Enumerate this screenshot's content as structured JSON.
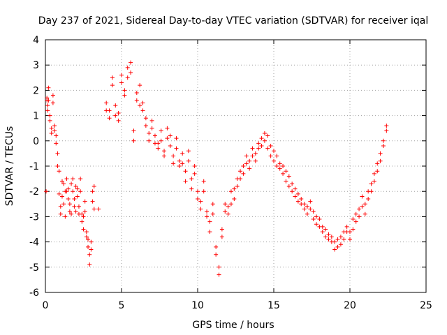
{
  "chart_data": {
    "type": "scatter",
    "title": "Day 237 of 2021, Sidereal Day-to-day VTEC variation (SDTVAR) for receiver iqal",
    "xlabel": "GPS time / hours",
    "ylabel": "SDTVAR / TECUs",
    "xlim": [
      0,
      25
    ],
    "ylim": [
      -6,
      4
    ],
    "xticks": [
      0,
      5,
      10,
      15,
      20,
      25
    ],
    "yticks": [
      -6,
      -5,
      -4,
      -3,
      -2,
      -1,
      0,
      1,
      2,
      3,
      4
    ],
    "grid": true,
    "marker": "+",
    "color": "#ff0000",
    "series": [
      {
        "name": "SDTVAR",
        "x": [
          0.05,
          0.1,
          0.15,
          0.2,
          0.3,
          0.4,
          0.5,
          0.6,
          0.7,
          0.8,
          0.9,
          1.0,
          1.1,
          1.2,
          1.3,
          1.4,
          1.5,
          1.6,
          1.7,
          1.8,
          1.9,
          2.0,
          2.1,
          2.2,
          2.3,
          2.4,
          2.5,
          2.6,
          2.7,
          2.8,
          2.9,
          3.0,
          3.1,
          3.2,
          3.5,
          4.0,
          4.2,
          4.4,
          4.6,
          4.8,
          5.0,
          5.2,
          5.4,
          5.6,
          5.8,
          6.0,
          6.2,
          6.4,
          6.6,
          6.8,
          7.0,
          7.2,
          7.4,
          7.6,
          7.8,
          8.0,
          8.2,
          8.4,
          8.6,
          8.8,
          9.0,
          9.2,
          9.4,
          9.6,
          9.8,
          10.0,
          10.2,
          10.4,
          10.6,
          10.8,
          11.0,
          11.2,
          11.4,
          11.6,
          11.8,
          12.0,
          12.2,
          12.4,
          12.6,
          12.8,
          13.0,
          13.2,
          13.4,
          13.6,
          13.8,
          14.0,
          14.2,
          14.4,
          14.6,
          14.8,
          15.0,
          15.2,
          15.4,
          15.6,
          15.8,
          16.0,
          16.2,
          16.4,
          16.6,
          16.8,
          17.0,
          17.2,
          17.4,
          17.6,
          17.8,
          18.0,
          18.2,
          18.4,
          18.6,
          18.8,
          19.0,
          19.2,
          19.4,
          19.6,
          19.8,
          20.0,
          20.2,
          20.4,
          20.6,
          20.8,
          21.0,
          21.2,
          21.4,
          21.6,
          21.8,
          22.0,
          22.2,
          22.4
        ],
        "y": [
          -2.0,
          1.6,
          1.2,
          2.1,
          1.0,
          0.5,
          1.8,
          0.6,
          0.2,
          -0.5,
          -1.2,
          -2.9,
          -1.6,
          -2.5,
          -2.0,
          -1.5,
          -2.3,
          -2.8,
          -1.7,
          -2.0,
          -2.6,
          -1.8,
          -2.2,
          -2.9,
          -1.5,
          -3.2,
          -3.5,
          -2.4,
          -3.8,
          -4.2,
          -4.9,
          -4.0,
          -2.0,
          -1.8,
          -2.7,
          1.5,
          1.2,
          2.5,
          1.0,
          0.8,
          2.6,
          1.8,
          2.9,
          3.1,
          0.4,
          1.9,
          2.2,
          1.5,
          0.9,
          0.3,
          0.8,
          0.2,
          -0.1,
          0.4,
          -0.4,
          0.5,
          0.2,
          -0.6,
          0.1,
          -0.8,
          -0.5,
          -1.2,
          -0.4,
          -1.5,
          -1.0,
          -2.0,
          -2.4,
          -1.6,
          -2.8,
          -3.2,
          -2.5,
          -4.5,
          -5.3,
          -3.5,
          -2.5,
          -2.9,
          -2.0,
          -2.3,
          -1.5,
          -1.2,
          -1.0,
          -0.6,
          -0.8,
          -0.3,
          -0.5,
          -0.1,
          0.1,
          0.3,
          0.2,
          -0.2,
          -0.4,
          -0.6,
          -0.9,
          -1.0,
          -1.2,
          -1.4,
          -1.7,
          -1.9,
          -2.1,
          -2.3,
          -2.5,
          -2.6,
          -2.4,
          -2.8,
          -3.0,
          -3.1,
          -3.4,
          -3.5,
          -3.7,
          -3.8,
          -4.0,
          -4.2,
          -4.1,
          -3.9,
          -3.6,
          -3.9,
          -3.5,
          -3.2,
          -3.0,
          -2.6,
          -2.9,
          -2.3,
          -2.0,
          -1.6,
          -1.2,
          -0.8,
          -0.2,
          0.4
        ],
        "y2": [
          null,
          1.7,
          1.4,
          1.6,
          0.8,
          0.3,
          1.5,
          0.4,
          -0.1,
          -1.0,
          -2.1,
          -2.6,
          -2.2,
          -1.7,
          -3.0,
          -2.0,
          -1.9,
          -2.5,
          -2.9,
          -1.5,
          -2.3,
          -2.8,
          -1.9,
          -2.6,
          -2.0,
          -2.9,
          -3.0,
          -2.8,
          -3.6,
          -3.9,
          -4.5,
          -4.3,
          -2.4,
          -2.7,
          null,
          1.2,
          0.9,
          2.2,
          1.4,
          1.1,
          2.3,
          2.0,
          2.5,
          2.7,
          0.0,
          1.6,
          1.4,
          1.2,
          0.6,
          0.0,
          0.5,
          -0.1,
          -0.3,
          0.0,
          -0.6,
          0.1,
          -0.2,
          -0.9,
          -0.3,
          -1.0,
          -0.9,
          -1.6,
          -0.8,
          -1.9,
          -1.3,
          -2.3,
          -2.7,
          -2.0,
          -3.0,
          -3.6,
          -2.9,
          -4.2,
          -5.0,
          -3.8,
          -2.8,
          -2.6,
          -2.5,
          -1.9,
          -1.8,
          -1.5,
          -1.3,
          -0.9,
          -1.1,
          -0.6,
          -0.8,
          -0.3,
          -0.2,
          0.0,
          -0.3,
          -0.6,
          -0.8,
          -1.0,
          -1.1,
          -1.3,
          -1.6,
          -1.8,
          -2.0,
          -2.2,
          -2.4,
          -2.5,
          -2.7,
          -2.9,
          -2.7,
          -3.1,
          -3.3,
          -3.4,
          -3.6,
          -3.8,
          -3.9,
          -4.0,
          -4.3,
          -3.9,
          -3.8,
          -3.6,
          -3.4,
          -3.6,
          -3.1,
          -2.9,
          -2.7,
          -2.2,
          -2.5,
          -2.0,
          -1.7,
          -1.3,
          -0.9,
          -0.5,
          0.0,
          0.6
        ]
      }
    ]
  }
}
